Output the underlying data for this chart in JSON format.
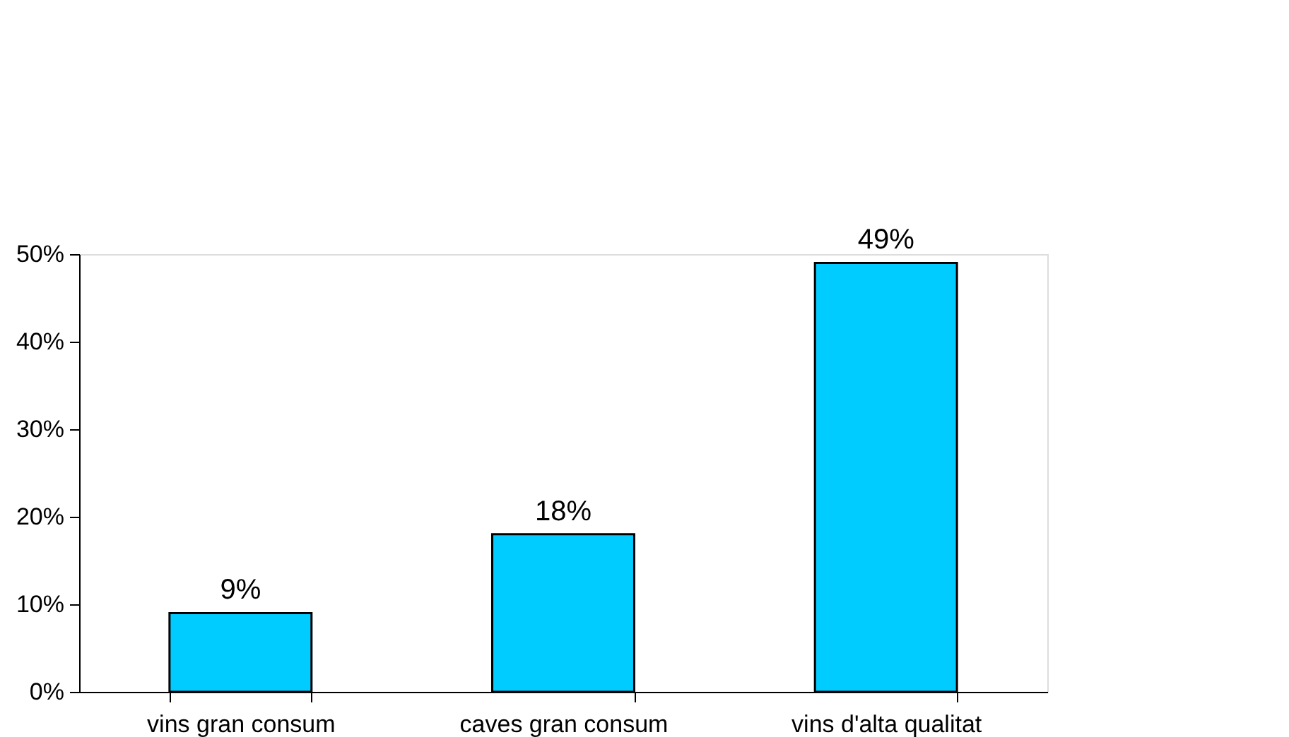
{
  "chart_data": {
    "type": "bar",
    "categories": [
      "vins gran consum",
      "caves gran consum",
      "vins d'alta qualitat"
    ],
    "values": [
      9,
      18,
      49
    ],
    "color": "#00ccff",
    "value_labels": [
      "9%",
      "18%",
      "49%"
    ],
    "ylim": [
      0,
      50
    ],
    "yticks": [
      {
        "value": 0,
        "label": "0%"
      },
      {
        "value": 10,
        "label": "10%"
      },
      {
        "value": 20,
        "label": "20%"
      },
      {
        "value": 30,
        "label": "30%"
      },
      {
        "value": 40,
        "label": "40%"
      },
      {
        "value": 50,
        "label": "50%"
      }
    ],
    "grid": false
  }
}
